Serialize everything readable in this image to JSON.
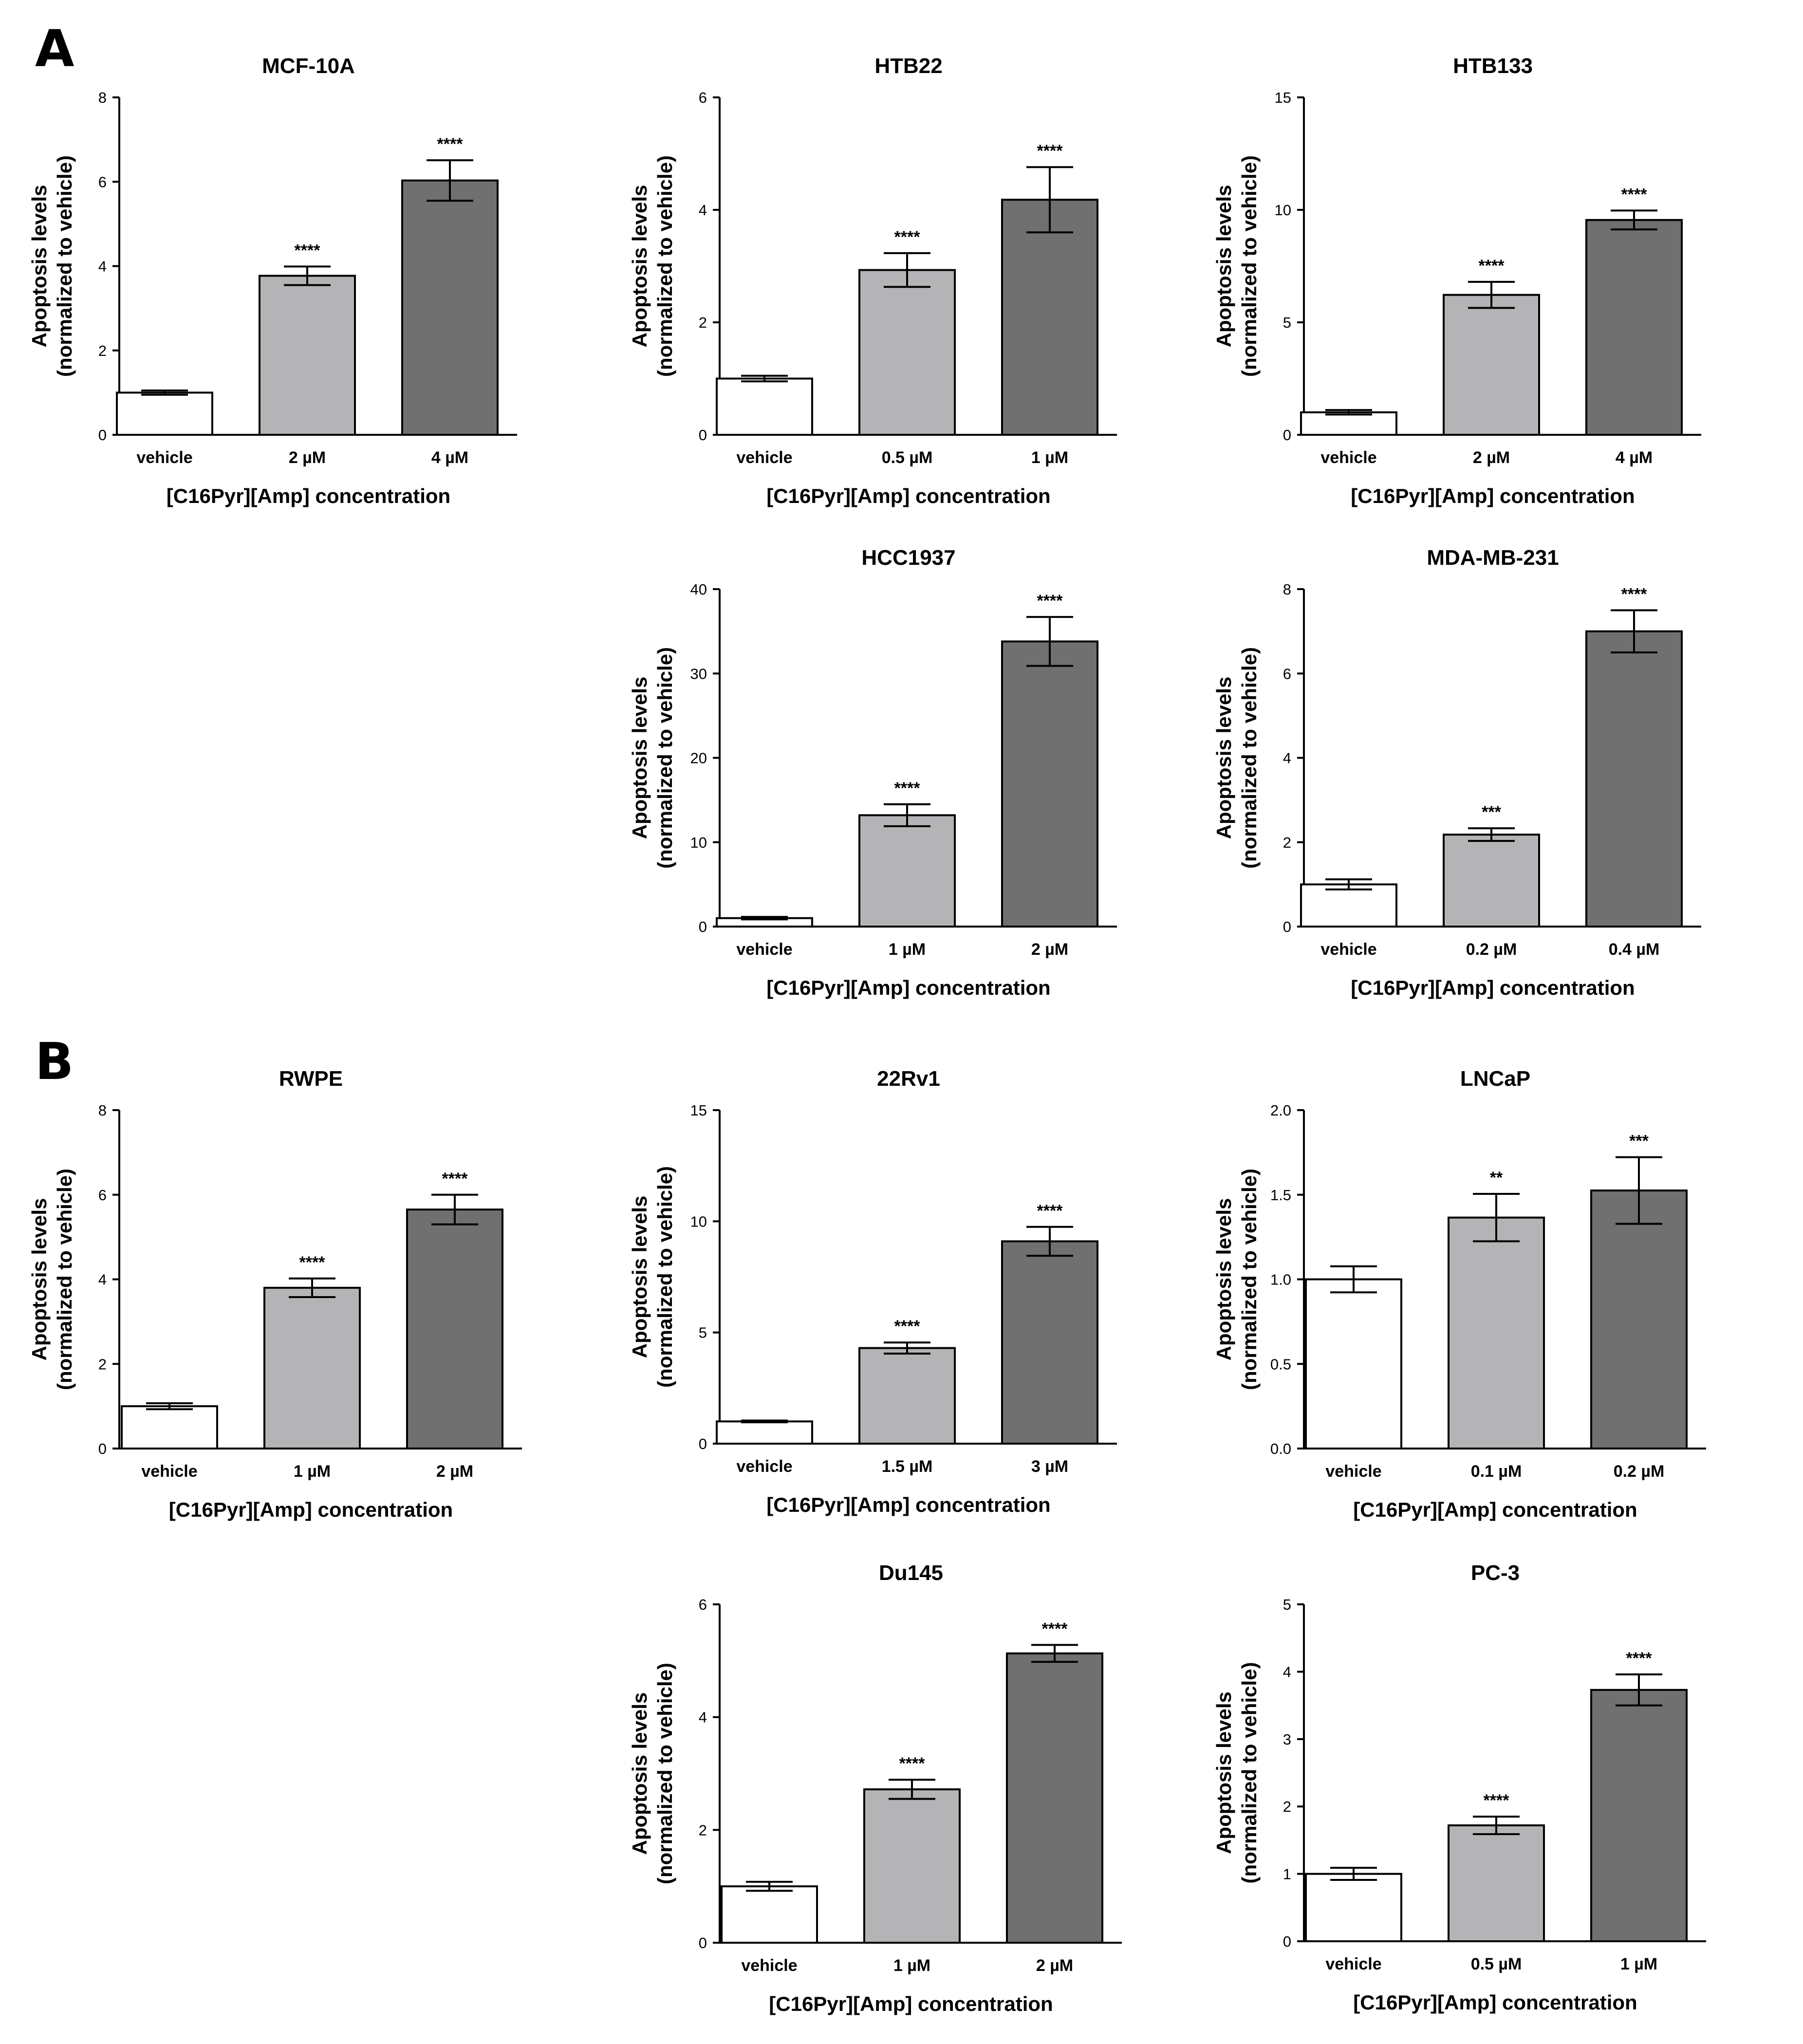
{
  "panels": [
    {
      "letter": "A"
    },
    {
      "letter": "B"
    }
  ],
  "style": {
    "vehicle_fill": "#ffffff",
    "low_fill": "#b4b4b6",
    "high_fill": "#707070",
    "stroke": "#000000"
  },
  "chart_data": [
    {
      "type": "bar",
      "panel": "A",
      "title": "MCF-10A",
      "categories": [
        "vehicle",
        "2 µM",
        "4 µM"
      ],
      "values": [
        1.0,
        3.77,
        6.03
      ],
      "errors": [
        0.05,
        0.22,
        0.48
      ],
      "significance": [
        "",
        "****",
        "****"
      ],
      "ylim": [
        0,
        8
      ],
      "yticks": [
        "0",
        "2",
        "4",
        "6",
        "8"
      ],
      "ylabel": [
        "Apoptosis levels",
        "(normalized to vehicle)"
      ],
      "xlabel": "[C16Pyr][Amp] concentration"
    },
    {
      "type": "bar",
      "panel": "A",
      "title": "HTB22",
      "categories": [
        "vehicle",
        "0.5 µM",
        "1 µM"
      ],
      "values": [
        1.0,
        2.93,
        4.18
      ],
      "errors": [
        0.05,
        0.3,
        0.58
      ],
      "significance": [
        "",
        "****",
        "****"
      ],
      "ylim": [
        0,
        6
      ],
      "yticks": [
        "0",
        "2",
        "4",
        "6"
      ],
      "ylabel": [
        "Apoptosis levels",
        "(normalized to vehicle)"
      ],
      "xlabel": "[C16Pyr][Amp] concentration"
    },
    {
      "type": "bar",
      "panel": "A",
      "title": "HTB133",
      "categories": [
        "vehicle",
        "2 µM",
        "4 µM"
      ],
      "values": [
        1.0,
        6.22,
        9.55
      ],
      "errors": [
        0.1,
        0.58,
        0.42
      ],
      "significance": [
        "",
        "****",
        "****"
      ],
      "ylim": [
        0,
        15
      ],
      "yticks": [
        "0",
        "5",
        "10",
        "15"
      ],
      "ylabel": [
        "Apoptosis levels",
        "(normalized to vehicle)"
      ],
      "xlabel": "[C16Pyr][Amp] concentration"
    },
    {
      "type": "bar",
      "panel": "A",
      "title": "HCC1937",
      "categories": [
        "vehicle",
        "1 µM",
        "2 µM"
      ],
      "values": [
        1.0,
        13.2,
        33.8
      ],
      "errors": [
        0.15,
        1.3,
        2.9
      ],
      "significance": [
        "",
        "****",
        "****"
      ],
      "ylim": [
        0,
        40
      ],
      "yticks": [
        "0",
        "10",
        "20",
        "30",
        "40"
      ],
      "ylabel": [
        "Apoptosis levels",
        "(normalized to vehicle)"
      ],
      "xlabel": "[C16Pyr][Amp] concentration"
    },
    {
      "type": "bar",
      "panel": "A",
      "title": "MDA-MB-231",
      "categories": [
        "vehicle",
        "0.2 µM",
        "0.4 µM"
      ],
      "values": [
        1.0,
        2.18,
        7.0
      ],
      "errors": [
        0.12,
        0.15,
        0.5
      ],
      "significance": [
        "",
        "***",
        "****"
      ],
      "ylim": [
        0,
        8
      ],
      "yticks": [
        "0",
        "2",
        "4",
        "6",
        "8"
      ],
      "ylabel": [
        "Apoptosis levels",
        "(normalized to vehicle)"
      ],
      "xlabel": "[C16Pyr][Amp] concentration"
    },
    {
      "type": "bar",
      "panel": "B",
      "title": "RWPE",
      "categories": [
        "vehicle",
        "1 µM",
        "2 µM"
      ],
      "values": [
        1.0,
        3.8,
        5.65
      ],
      "errors": [
        0.07,
        0.22,
        0.35
      ],
      "significance": [
        "",
        "****",
        "****"
      ],
      "ylim": [
        0,
        8
      ],
      "yticks": [
        "0",
        "2",
        "4",
        "6",
        "8"
      ],
      "ylabel": [
        "Apoptosis levels",
        "(normalized to vehicle)"
      ],
      "xlabel": "[C16Pyr][Amp] concentration"
    },
    {
      "type": "bar",
      "panel": "B",
      "title": "22Rv1",
      "categories": [
        "vehicle",
        "1.5 µM",
        "3 µM"
      ],
      "values": [
        1.0,
        4.3,
        9.1
      ],
      "errors": [
        0.04,
        0.25,
        0.65
      ],
      "significance": [
        "",
        "****",
        "****"
      ],
      "ylim": [
        0,
        15
      ],
      "yticks": [
        "0",
        "5",
        "10",
        "15"
      ],
      "ylabel": [
        "Apoptosis levels",
        "(normalized to vehicle)"
      ],
      "xlabel": "[C16Pyr][Amp] concentration"
    },
    {
      "type": "bar",
      "panel": "B",
      "title": "LNCaP",
      "categories": [
        "vehicle",
        "0.1 µM",
        "0.2 µM"
      ],
      "values": [
        1.0,
        1.365,
        1.525
      ],
      "errors": [
        0.077,
        0.14,
        0.197
      ],
      "significance": [
        "",
        "**",
        "***"
      ],
      "ylim": [
        0,
        2
      ],
      "yticks": [
        "0.0",
        "0.5",
        "1.0",
        "1.5",
        "2.0"
      ],
      "ylabel": [
        "Apoptosis levels",
        "(normalized to vehicle)"
      ],
      "xlabel": "[C16Pyr][Amp] concentration"
    },
    {
      "type": "bar",
      "panel": "B",
      "title": "Du145",
      "categories": [
        "vehicle",
        "1 µM",
        "2 µM"
      ],
      "values": [
        1.0,
        2.72,
        5.13
      ],
      "errors": [
        0.08,
        0.17,
        0.15
      ],
      "significance": [
        "",
        "****",
        "****"
      ],
      "ylim": [
        0,
        6
      ],
      "yticks": [
        "0",
        "2",
        "4",
        "6"
      ],
      "ylabel": [
        "Apoptosis levels",
        "(normalized to vehicle)"
      ],
      "xlabel": "[C16Pyr][Amp] concentration"
    },
    {
      "type": "bar",
      "panel": "B",
      "title": "PC-3",
      "categories": [
        "vehicle",
        "0.5 µM",
        "1 µM"
      ],
      "values": [
        1.0,
        1.72,
        3.73
      ],
      "errors": [
        0.09,
        0.13,
        0.23
      ],
      "significance": [
        "",
        "****",
        "****"
      ],
      "ylim": [
        0,
        5
      ],
      "yticks": [
        "0",
        "1",
        "2",
        "3",
        "4",
        "5"
      ],
      "ylabel": [
        "Apoptosis levels",
        "(normalized to vehicle)"
      ],
      "xlabel": "[C16Pyr][Amp] concentration"
    }
  ]
}
